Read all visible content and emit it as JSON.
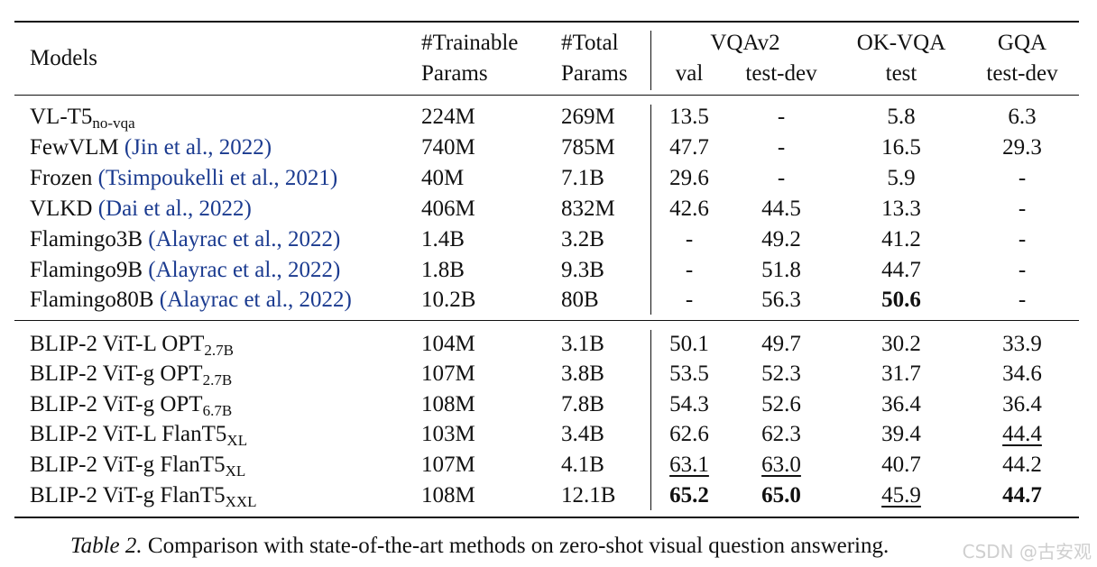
{
  "header": {
    "models": "Models",
    "trainable_1": "#Trainable",
    "trainable_2": "Params",
    "total_1": "#Total",
    "total_2": "Params",
    "vqav2": "VQAv2",
    "vqav2_val": "val",
    "vqav2_testdev": "test-dev",
    "okvqa": "OK-VQA",
    "okvqa_test": "test",
    "gqa": "GQA",
    "gqa_testdev": "test-dev"
  },
  "rows": [
    {
      "model": "VL-T5",
      "model_sub": "no-vqa",
      "cite": "",
      "trainable": "224M",
      "total": "269M",
      "val": "13.5",
      "testdev": "-",
      "ok": "5.8",
      "gqa": "6.3"
    },
    {
      "model": "FewVLM",
      "model_sub": "",
      "cite": "(Jin et al., 2022)",
      "trainable": "740M",
      "total": "785M",
      "val": "47.7",
      "testdev": "-",
      "ok": "16.5",
      "gqa": "29.3"
    },
    {
      "model": "Frozen",
      "model_sub": "",
      "cite": "(Tsimpoukelli et al., 2021)",
      "trainable": "40M",
      "total": "7.1B",
      "val": "29.6",
      "testdev": "-",
      "ok": "5.9",
      "gqa": "-"
    },
    {
      "model": "VLKD",
      "model_sub": "",
      "cite": "(Dai et al., 2022)",
      "trainable": "406M",
      "total": "832M",
      "val": "42.6",
      "testdev": "44.5",
      "ok": "13.3",
      "gqa": "-"
    },
    {
      "model": "Flamingo3B",
      "model_sub": "",
      "cite": "(Alayrac et al., 2022)",
      "trainable": "1.4B",
      "total": "3.2B",
      "val": "-",
      "testdev": "49.2",
      "ok": "41.2",
      "gqa": "-"
    },
    {
      "model": "Flamingo9B",
      "model_sub": "",
      "cite": "(Alayrac et al., 2022)",
      "trainable": "1.8B",
      "total": "9.3B",
      "val": "-",
      "testdev": "51.8",
      "ok": "44.7",
      "gqa": "-"
    },
    {
      "model": "Flamingo80B",
      "model_sub": "",
      "cite": "(Alayrac et al., 2022)",
      "trainable": "10.2B",
      "total": "80B",
      "val": "-",
      "testdev": "56.3",
      "ok": "50.6",
      "gqa": "-"
    },
    {
      "model": "BLIP-2 ViT-L OPT",
      "model_sub": "2.7B",
      "cite": "",
      "trainable": "104M",
      "total": "3.1B",
      "val": "50.1",
      "testdev": "49.7",
      "ok": "30.2",
      "gqa": "33.9"
    },
    {
      "model": "BLIP-2 ViT-g OPT",
      "model_sub": "2.7B",
      "cite": "",
      "trainable": "107M",
      "total": "3.8B",
      "val": "53.5",
      "testdev": "52.3",
      "ok": "31.7",
      "gqa": "34.6"
    },
    {
      "model": "BLIP-2 ViT-g OPT",
      "model_sub": "6.7B",
      "cite": "",
      "trainable": "108M",
      "total": "7.8B",
      "val": "54.3",
      "testdev": "52.6",
      "ok": "36.4",
      "gqa": "36.4"
    },
    {
      "model": "BLIP-2 ViT-L FlanT5",
      "model_sub": "XL",
      "cite": "",
      "trainable": "103M",
      "total": "3.4B",
      "val": "62.6",
      "testdev": "62.3",
      "ok": "39.4",
      "gqa": "44.4"
    },
    {
      "model": "BLIP-2 ViT-g FlanT5",
      "model_sub": "XL",
      "cite": "",
      "trainable": "107M",
      "total": "4.1B",
      "val": "63.1",
      "testdev": "63.0",
      "ok": "40.7",
      "gqa": "44.2"
    },
    {
      "model": "BLIP-2 ViT-g FlanT5",
      "model_sub": "XXL",
      "cite": "",
      "trainable": "108M",
      "total": "12.1B",
      "val": "65.2",
      "testdev": "65.0",
      "ok": "45.9",
      "gqa": "44.7"
    }
  ],
  "emphasis": {
    "bold": [
      [
        6,
        "ok"
      ],
      [
        12,
        "val"
      ],
      [
        12,
        "testdev"
      ],
      [
        12,
        "gqa"
      ]
    ],
    "underline": [
      [
        10,
        "gqa"
      ],
      [
        11,
        "val"
      ],
      [
        11,
        "testdev"
      ],
      [
        12,
        "ok"
      ]
    ]
  },
  "caption": {
    "label": "Table 2.",
    "text": " Comparison with state-of-the-art methods on zero-shot visual question answering."
  },
  "watermark": "CSDN @古安观"
}
